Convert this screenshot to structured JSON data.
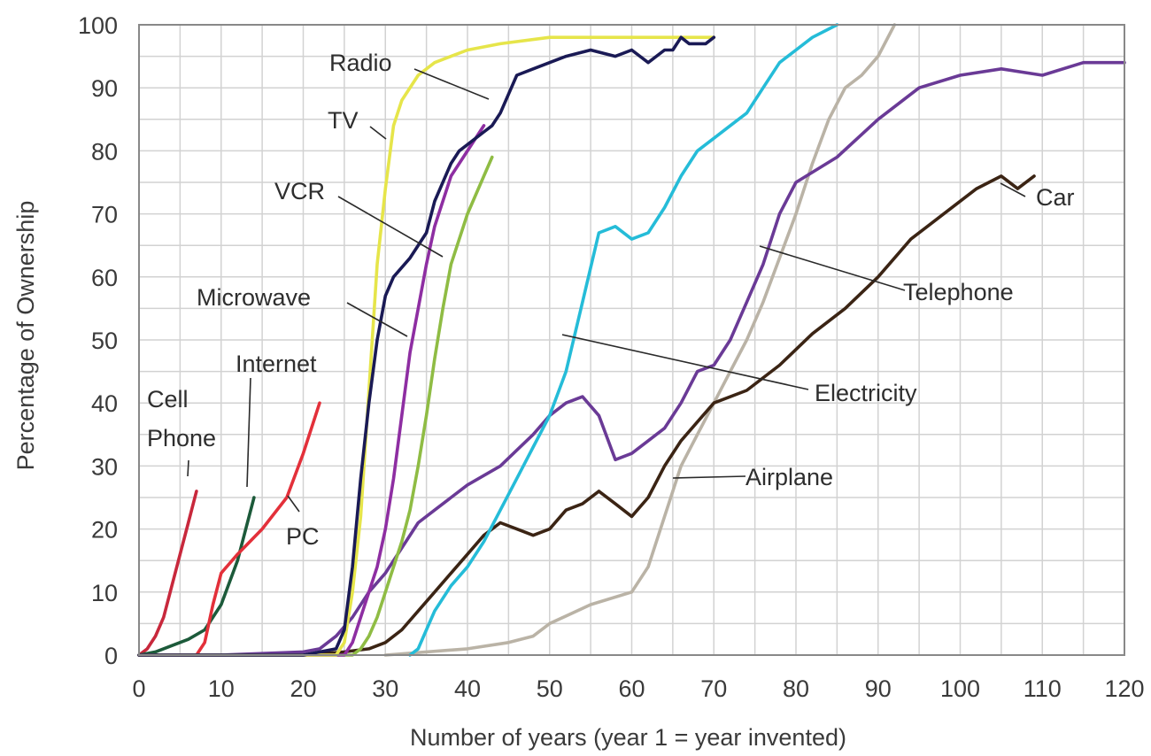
{
  "chart_data": {
    "type": "line",
    "title": "",
    "xlabel": "Number of years (year 1 = year invented)",
    "ylabel": "Percentage of Ownership",
    "xlim": [
      0,
      120
    ],
    "ylim": [
      0,
      100
    ],
    "xticks": [
      "0",
      "10",
      "20",
      "30",
      "40",
      "50",
      "60",
      "70",
      "80",
      "90",
      "100",
      "110",
      "120"
    ],
    "yticks": [
      "0",
      "10",
      "20",
      "30",
      "40",
      "50",
      "60",
      "70",
      "80",
      "90",
      "100"
    ],
    "grid": true,
    "legend": "none",
    "series": [
      {
        "name": "Cell Phone",
        "color": "#c8283c",
        "label_lines": [
          "Cell",
          "Phone"
        ],
        "x": [
          0,
          1,
          2,
          3,
          4,
          5,
          6,
          7
        ],
        "y": [
          0,
          1,
          3,
          6,
          11,
          16,
          21,
          26
        ]
      },
      {
        "name": "Internet",
        "color": "#1c5a3a",
        "label_lines": [
          "Internet"
        ],
        "x": [
          0,
          2,
          4,
          6,
          8,
          10,
          12,
          13,
          14
        ],
        "y": [
          0,
          0.5,
          1.5,
          2.5,
          4,
          8,
          15,
          20,
          25
        ]
      },
      {
        "name": "PC",
        "color": "#e3303a",
        "label_lines": [
          "PC"
        ],
        "x": [
          0,
          7,
          8,
          9,
          10,
          12,
          15,
          18,
          20,
          22
        ],
        "y": [
          0,
          0,
          2,
          8,
          13,
          16,
          20,
          25,
          32,
          40
        ]
      },
      {
        "name": "TV",
        "color": "#e6e54a",
        "label_lines": [
          "TV"
        ],
        "x": [
          0,
          24,
          25,
          26,
          27,
          28,
          29,
          30,
          31,
          32,
          34,
          36,
          38,
          40,
          44,
          50,
          60,
          70
        ],
        "y": [
          0,
          0,
          2,
          10,
          22,
          42,
          62,
          74,
          84,
          88,
          92,
          94,
          95,
          96,
          97,
          98,
          98,
          98
        ]
      },
      {
        "name": "Radio",
        "color": "#1a1a55",
        "label_lines": [
          "Radio"
        ],
        "x": [
          0,
          20,
          24,
          25,
          26,
          27,
          28,
          29,
          30,
          31,
          33,
          35,
          36,
          38,
          39,
          40,
          42,
          43,
          44,
          45,
          46,
          48,
          52,
          55,
          58,
          60,
          62,
          64,
          65,
          66,
          67,
          68,
          69,
          70
        ],
        "y": [
          0,
          0,
          1,
          4,
          14,
          28,
          40,
          50,
          57,
          60,
          63,
          67,
          72,
          78,
          80,
          81,
          83,
          84,
          86,
          89,
          92,
          93,
          95,
          96,
          95,
          96,
          94,
          96,
          96,
          98,
          97,
          97,
          97,
          98
        ]
      },
      {
        "name": "VCR",
        "color": "#8e2ea2",
        "label_lines": [
          "VCR"
        ],
        "x": [
          0,
          25,
          26,
          27,
          28,
          29,
          30,
          31,
          32,
          33,
          35,
          36,
          38,
          40,
          42
        ],
        "y": [
          0,
          0,
          2,
          6,
          10,
          14,
          20,
          28,
          38,
          48,
          62,
          68,
          76,
          80,
          84
        ]
      },
      {
        "name": "Microwave",
        "color": "#8fbc44",
        "label_lines": [
          "Microwave"
        ],
        "x": [
          0,
          26,
          27,
          28,
          29,
          30,
          31,
          32,
          33,
          34,
          35,
          36,
          37,
          38,
          40,
          42,
          43
        ],
        "y": [
          0,
          0,
          1,
          3,
          6,
          10,
          14,
          18,
          23,
          30,
          38,
          47,
          55,
          62,
          70,
          76,
          79
        ]
      },
      {
        "name": "Electricity",
        "color": "#25bcd8",
        "label_lines": [
          "Electricity"
        ],
        "x": [
          33,
          34,
          35,
          36,
          38,
          40,
          42,
          44,
          46,
          48,
          50,
          52,
          54,
          56,
          58,
          60,
          62,
          64,
          66,
          68,
          70,
          72,
          74,
          76,
          78,
          80,
          82,
          85
        ],
        "y": [
          0,
          1,
          4,
          7,
          11,
          14,
          18,
          23,
          28,
          33,
          38,
          45,
          56,
          67,
          68,
          66,
          67,
          71,
          76,
          80,
          82,
          84,
          86,
          90,
          94,
          96,
          98,
          100
        ]
      },
      {
        "name": "Telephone",
        "color": "#6a3a96",
        "label_lines": [
          "Telephone"
        ],
        "x": [
          0,
          10,
          20,
          22,
          24,
          26,
          28,
          30,
          32,
          34,
          36,
          38,
          40,
          44,
          48,
          50,
          52,
          54,
          56,
          58,
          60,
          62,
          64,
          66,
          68,
          70,
          72,
          74,
          76,
          78,
          80,
          85,
          90,
          95,
          100,
          105,
          110,
          115,
          120
        ],
        "y": [
          0,
          0,
          0.5,
          1,
          3,
          6,
          10,
          13,
          17,
          21,
          23,
          25,
          27,
          30,
          35,
          38,
          40,
          41,
          38,
          31,
          32,
          34,
          36,
          40,
          45,
          46,
          50,
          56,
          62,
          70,
          75,
          79,
          85,
          90,
          92,
          93,
          92,
          94,
          94
        ]
      },
      {
        "name": "Car",
        "color": "#3b2414",
        "label_lines": [
          "Car"
        ],
        "x": [
          0,
          20,
          25,
          28,
          30,
          32,
          34,
          36,
          38,
          40,
          42,
          44,
          46,
          48,
          50,
          52,
          54,
          56,
          58,
          60,
          62,
          64,
          66,
          68,
          70,
          74,
          78,
          82,
          86,
          90,
          94,
          98,
          102,
          105,
          107,
          109
        ],
        "y": [
          0,
          0,
          0.5,
          1,
          2,
          4,
          7,
          10,
          13,
          16,
          19,
          21,
          20,
          19,
          20,
          23,
          24,
          26,
          24,
          22,
          25,
          30,
          34,
          37,
          40,
          42,
          46,
          51,
          55,
          60,
          66,
          70,
          74,
          76,
          74,
          76
        ]
      },
      {
        "name": "Airplane",
        "color": "#bab3a6",
        "label_lines": [
          "Airplane"
        ],
        "x": [
          30,
          40,
          45,
          48,
          50,
          55,
          60,
          62,
          64,
          66,
          68,
          70,
          72,
          74,
          76,
          78,
          80,
          82,
          84,
          86,
          88,
          90,
          92
        ],
        "y": [
          0,
          1,
          2,
          3,
          5,
          8,
          10,
          14,
          22,
          30,
          35,
          40,
          45,
          50,
          56,
          63,
          70,
          78,
          85,
          90,
          92,
          95,
          100
        ]
      }
    ]
  }
}
